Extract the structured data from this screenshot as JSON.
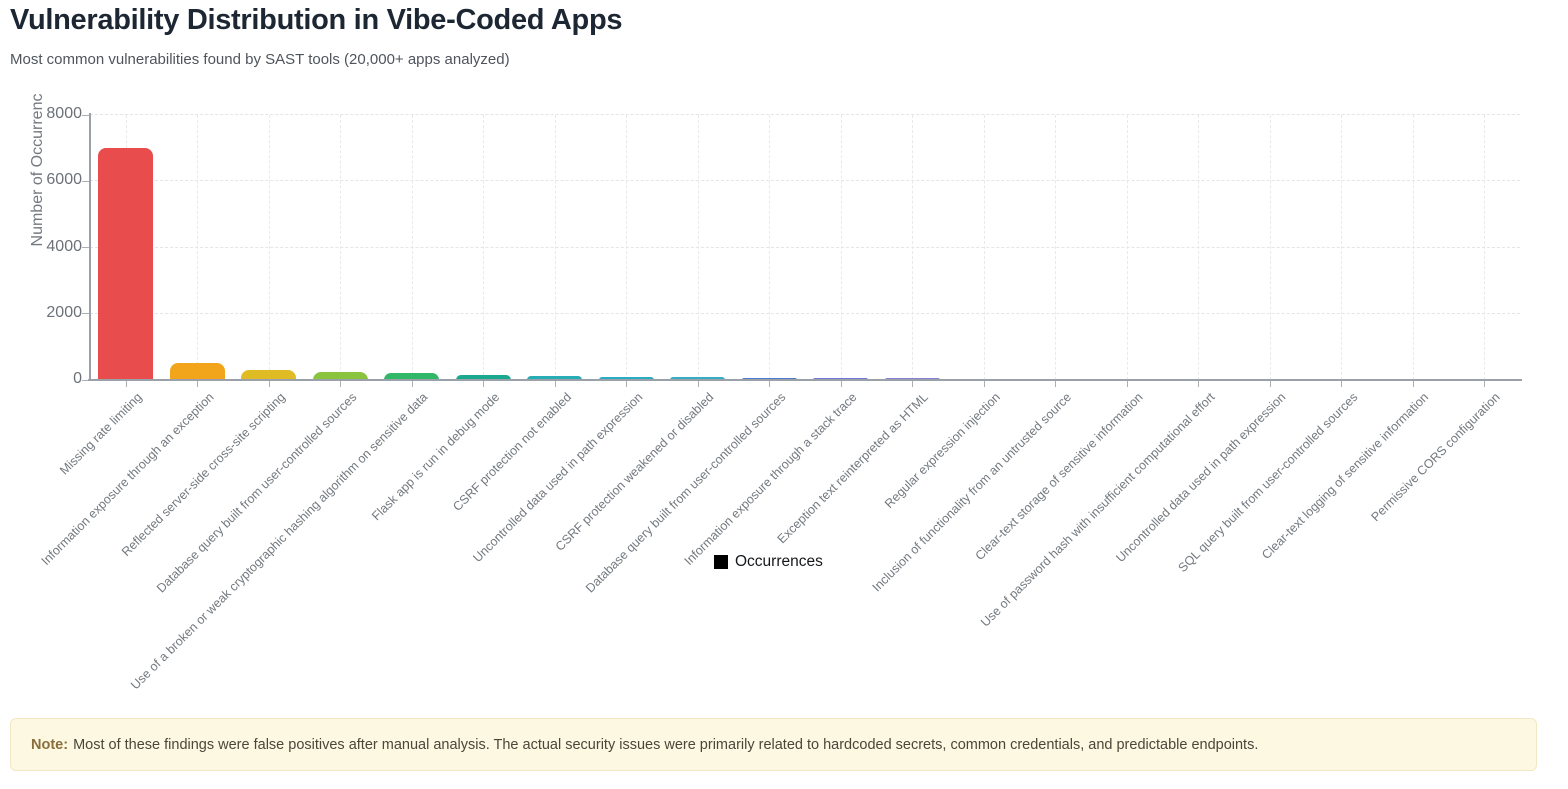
{
  "header": {
    "title": "Vulnerability Distribution in Vibe-Coded Apps",
    "subtitle": "Most common vulnerabilities found by SAST tools (20,000+ apps analyzed)"
  },
  "chart_data": {
    "type": "bar",
    "title": "",
    "xlabel": "",
    "ylabel": "Number of Occurrenc",
    "ylim": [
      0,
      8000
    ],
    "yticks": [
      0,
      2000,
      4000,
      6000,
      8000
    ],
    "grid": true,
    "legend": {
      "label": "Occurrences",
      "position": "bottom",
      "swatch_color": "#000000"
    },
    "categories": [
      "Missing rate limiting",
      "Information exposure through an exception",
      "Reflected server-side cross-site scripting",
      "Database query built from user-controlled sources",
      "Use of a broken or weak cryptographic hashing algorithm on sensitive data",
      "Flask app is run in debug mode",
      "CSRF protection not enabled",
      "Uncontrolled data used in path expression",
      "CSRF protection weakened or disabled",
      "Database query built from user-controlled sources",
      "Information exposure through a stack trace",
      "Exception text reinterpreted as HTML",
      "Regular expression injection",
      "Inclusion of functionality from an untrusted source",
      "Clear-text storage of sensitive information",
      "Use of password hash with insufficient computational effort",
      "Uncontrolled data used in path expression",
      "SQL query built from user-controlled sources",
      "Clear-text logging of sensitive information",
      "Permissive CORS configuration"
    ],
    "values": [
      7000,
      520,
      310,
      240,
      200,
      165,
      125,
      105,
      90,
      70,
      55,
      50,
      45,
      40,
      35,
      30,
      25,
      18,
      12,
      8
    ],
    "bar_colors": [
      "#e84c4c",
      "#f2a41b",
      "#e0bc24",
      "#8ac43e",
      "#30b768",
      "#1aa98e",
      "#28adb4",
      "#2aacc2",
      "#35aec4",
      "#4d7bd2",
      "#7276d8",
      "#8781da",
      "#9b89d8",
      "#9b6cc8",
      "#a864ad",
      "#bf5a7c",
      "#b5525c",
      "#b3a75c",
      "#d8d08e",
      "#93c6b9"
    ]
  },
  "note": {
    "label": "Note:",
    "text": "Most of these findings were false positives after manual analysis. The actual security issues were primarily related to hardcoded secrets, common credentials, and predictable endpoints.",
    "background_color": "#fdf8e1",
    "border_color": "#f2e8c4",
    "label_color": "#8a6d3b",
    "text_color": "#4b463a"
  }
}
